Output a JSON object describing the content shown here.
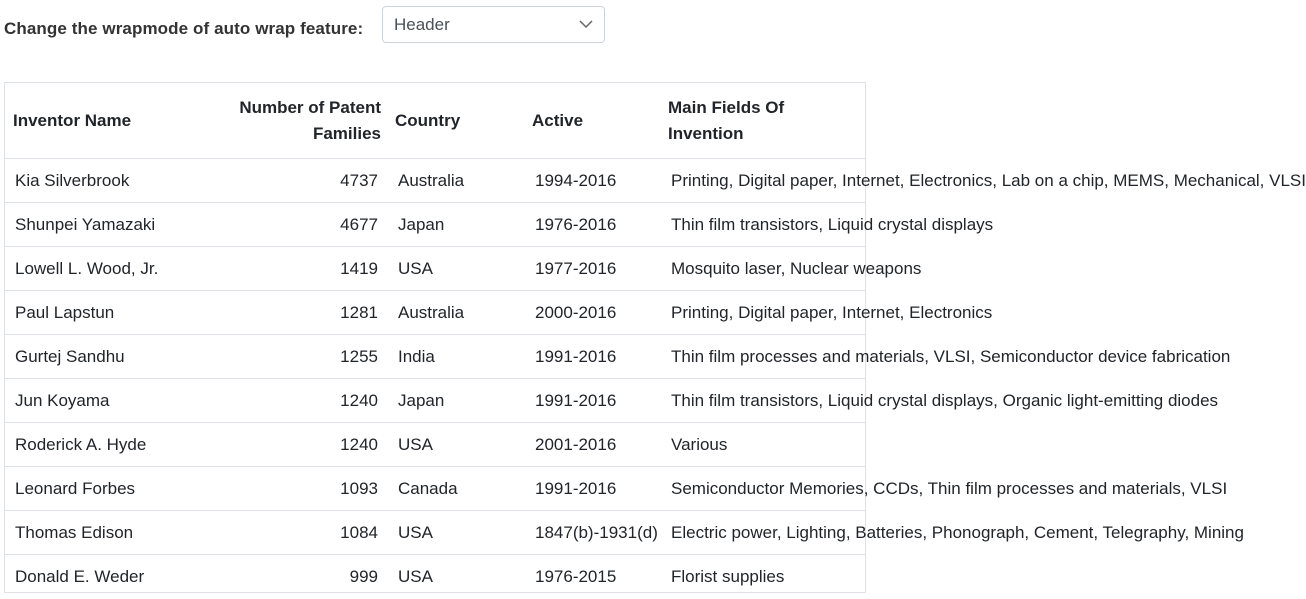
{
  "toolbar": {
    "label": "Change the wrapmode of auto wrap feature:",
    "wrapmode_selected": "Header"
  },
  "grid": {
    "columns": [
      {
        "label": "Inventor Name"
      },
      {
        "label": "Number of Patent Families"
      },
      {
        "label": "Country"
      },
      {
        "label": "Active"
      },
      {
        "label": "Main Fields Of Invention"
      }
    ],
    "rows": [
      {
        "name": "Kia Silverbrook",
        "patents": "4737",
        "country": "Australia",
        "active": "1994-2016",
        "fields": "Printing, Digital paper, Internet, Electronics, Lab on a chip, MEMS, Mechanical, VLSI"
      },
      {
        "name": "Shunpei Yamazaki",
        "patents": "4677",
        "country": "Japan",
        "active": "1976-2016",
        "fields": "Thin film transistors, Liquid crystal displays"
      },
      {
        "name": "Lowell L. Wood, Jr.",
        "patents": "1419",
        "country": "USA",
        "active": "1977-2016",
        "fields": "Mosquito laser, Nuclear weapons"
      },
      {
        "name": "Paul Lapstun",
        "patents": "1281",
        "country": "Australia",
        "active": "2000-2016",
        "fields": "Printing, Digital paper, Internet, Electronics"
      },
      {
        "name": "Gurtej Sandhu",
        "patents": "1255",
        "country": "India",
        "active": "1991-2016",
        "fields": "Thin film processes and materials, VLSI, Semiconductor device fabrication"
      },
      {
        "name": "Jun Koyama",
        "patents": "1240",
        "country": "Japan",
        "active": "1991-2016",
        "fields": "Thin film transistors, Liquid crystal displays, Organic light-emitting diodes"
      },
      {
        "name": "Roderick A. Hyde",
        "patents": "1240",
        "country": "USA",
        "active": "2001-2016",
        "fields": "Various"
      },
      {
        "name": "Leonard Forbes",
        "patents": "1093",
        "country": "Canada",
        "active": "1991-2016",
        "fields": "Semiconductor Memories, CCDs, Thin film processes and materials, VLSI"
      },
      {
        "name": "Thomas Edison",
        "patents": "1084",
        "country": "USA",
        "active": "1847(b)-1931(d)",
        "fields": "Electric power, Lighting, Batteries, Phonograph, Cement, Telegraphy, Mining"
      },
      {
        "name": "Donald E. Weder",
        "patents": "999",
        "country": "USA",
        "active": "1976-2015",
        "fields": "Florist supplies"
      }
    ]
  }
}
